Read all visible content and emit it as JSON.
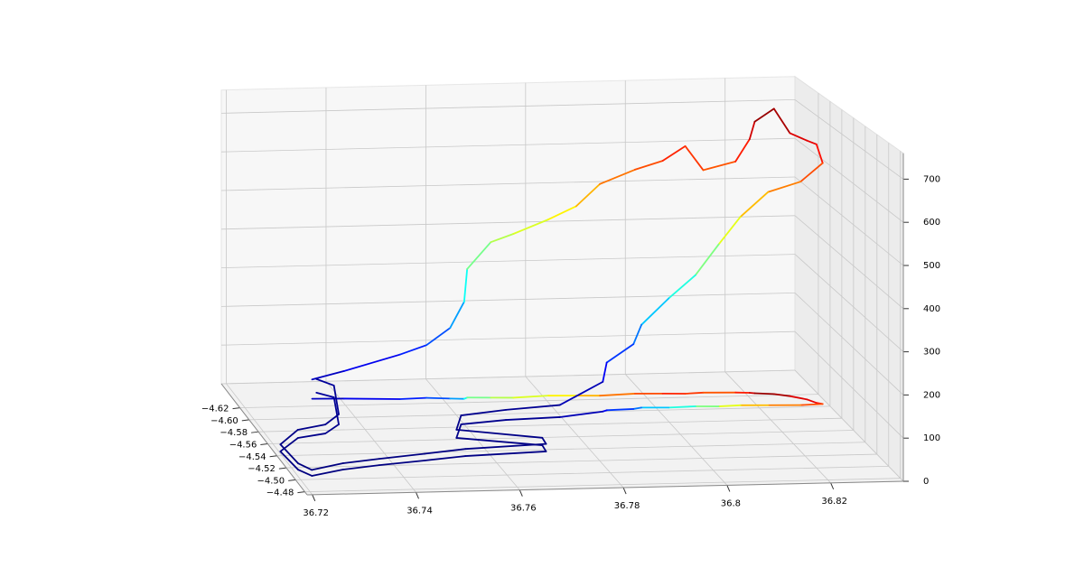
{
  "chart_data": {
    "type": "line3d",
    "colormap": "jet",
    "shadow": true,
    "grid": true,
    "x": [
      36.7345,
      36.7408,
      36.7516,
      36.757,
      36.7615,
      36.7642,
      36.765,
      36.7696,
      36.774,
      36.7812,
      36.7866,
      36.7912,
      36.7984,
      36.8038,
      36.8082,
      36.8119,
      36.8182,
      36.8209,
      36.8218,
      36.8254,
      36.8281,
      36.8308,
      36.832,
      36.833,
      36.8285,
      36.8222,
      36.8168,
      36.8124,
      36.8079,
      36.8025,
      36.7972,
      36.7954,
      36.79,
      36.789,
      36.7797,
      36.7688,
      36.7594,
      36.7563,
      36.7716,
      36.7713,
      36.7551,
      36.7466,
      36.7372,
      36.7296,
      36.7227,
      36.721,
      36.7203,
      36.7257,
      36.7317,
      36.7357,
      36.739,
      36.7363
    ],
    "y": [
      -4.632,
      -4.631,
      -4.628,
      -4.629,
      -4.627,
      -4.626,
      -4.628,
      -4.627,
      -4.626,
      -4.628,
      -4.627,
      -4.626,
      -4.628,
      -4.627,
      -4.626,
      -4.627,
      -4.626,
      -4.625,
      -4.624,
      -4.622,
      -4.618,
      -4.612,
      -4.606,
      -4.604,
      -4.603,
      -4.604,
      -4.605,
      -4.604,
      -4.605,
      -4.604,
      -4.605,
      -4.603,
      -4.602,
      -4.6,
      -4.5925,
      -4.59,
      -4.5845,
      -4.5625,
      -4.5473,
      -4.537,
      -4.5325,
      -4.5268,
      -4.5209,
      -4.515,
      -4.5059,
      -4.5164,
      -4.547,
      -4.5684,
      -4.5747,
      -4.5891,
      -4.6335,
      -4.6417
    ],
    "z": [
      49,
      70,
      113,
      134,
      179,
      246,
      326,
      394,
      415,
      447,
      480,
      536,
      568,
      590,
      627,
      564,
      585,
      642,
      687,
      721,
      663,
      650,
      647,
      602,
      558,
      533,
      471,
      405,
      328,
      273,
      207,
      162,
      119,
      74,
      30,
      25,
      22,
      20,
      18,
      18,
      17,
      16,
      15,
      15,
      14,
      15,
      17,
      20,
      22,
      25,
      30,
      35
    ],
    "xlim": [
      36.719,
      36.834
    ],
    "ylim": [
      -4.66,
      -4.475
    ],
    "zlim": [
      0,
      760
    ],
    "xticks": [
      36.72,
      36.74,
      36.76,
      36.78,
      36.8,
      {
        "value": 36.82,
        "label": "36.82"
      }
    ],
    "yticks": [
      {
        "value": -4.62,
        "label": "−4.62"
      },
      {
        "value": -4.6,
        "label": "−4.60"
      },
      {
        "value": -4.58,
        "label": "−4.58"
      },
      {
        "value": -4.56,
        "label": "−4.56"
      },
      {
        "value": -4.54,
        "label": "−4.54"
      },
      {
        "value": -4.52,
        "label": "−4.52"
      },
      {
        "value": -4.5,
        "label": "−4.50"
      },
      {
        "value": -4.48,
        "label": "−4.48"
      }
    ],
    "zticks": [
      0,
      100,
      200,
      300,
      400,
      500,
      600,
      700
    ]
  }
}
